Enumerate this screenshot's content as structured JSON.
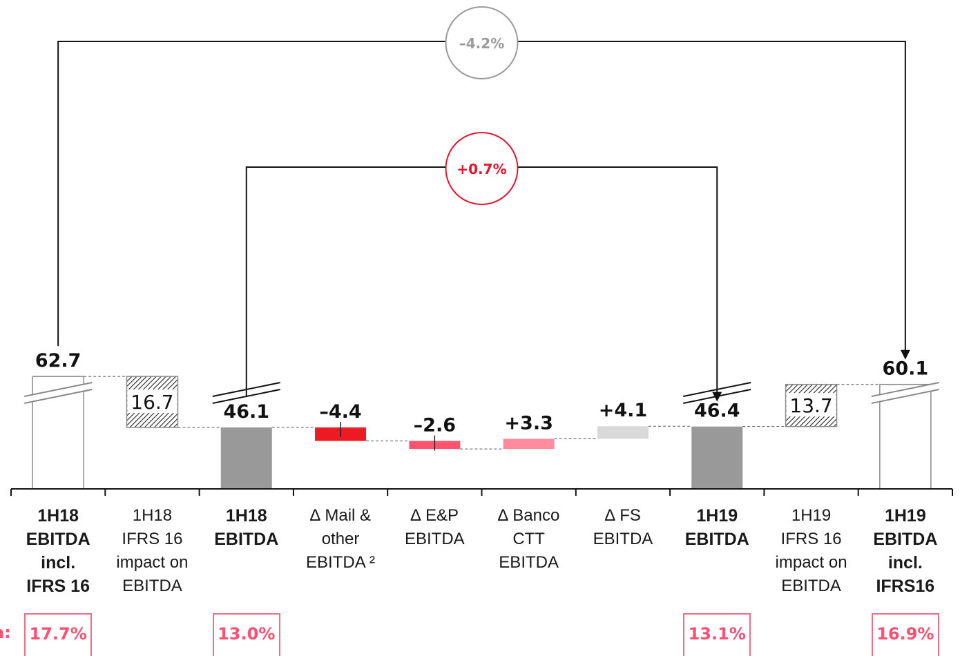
{
  "chart_data": {
    "type": "waterfall",
    "categories": [
      "1H18 EBITDA incl. IFRS 16",
      "1H18 IFRS 16 impact on EBITDA",
      "1H18 EBITDA",
      "∆ Mail & other EBITDA ²",
      "∆ E&P EBITDA",
      "∆ Banco CTT EBITDA",
      "∆ FS EBITDA",
      "1H19 EBITDA",
      "1H19 IFRS 16 impact on EBITDA",
      "1H19 EBITDA incl. IFRS16"
    ],
    "category_lines": [
      [
        "1H18",
        "EBITDA",
        "incl.",
        "IFRS 16"
      ],
      [
        "1H18",
        "IFRS 16",
        "impact on",
        "EBITDA"
      ],
      [
        "1H18",
        "EBITDA"
      ],
      [
        "∆ Mail &",
        "other",
        "EBITDA ²"
      ],
      [
        "∆ E&P",
        "EBITDA"
      ],
      [
        "∆ Banco",
        "CTT",
        "EBITDA"
      ],
      [
        "∆ FS",
        "EBITDA"
      ],
      [
        "1H19",
        "EBITDA"
      ],
      [
        "1H19",
        "IFRS 16",
        "impact on",
        "EBITDA"
      ],
      [
        "1H19",
        "EBITDA",
        "incl.",
        "IFRS16"
      ]
    ],
    "bold_categories": [
      0,
      2,
      7,
      9
    ],
    "values": [
      62.7,
      16.7,
      46.1,
      -4.4,
      -2.6,
      3.3,
      4.1,
      46.4,
      13.7,
      60.1
    ],
    "value_labels": [
      "62.7",
      "16.7",
      "46.1",
      "–4.4",
      "–2.6",
      "+3.3",
      "+4.1",
      "46.4",
      "13.7",
      "60.1"
    ],
    "kinds": [
      "total",
      "ifrs",
      "total",
      "delta",
      "delta",
      "delta",
      "delta",
      "total",
      "ifrs",
      "total"
    ],
    "colors": [
      "#ffffff",
      "hatch",
      "#999999",
      "#ed1c24",
      "#ff5470",
      "#ff8c9e",
      "#d9d9d9",
      "#999999",
      "hatch",
      "#ffffff"
    ],
    "axis_break": true,
    "annotations": [
      {
        "text": "–4.2%",
        "from": 0,
        "to": 9,
        "color": "#9a9a9a"
      },
      {
        "text": "+0.7%",
        "from": 2,
        "to": 7,
        "color": "#e4142c"
      }
    ],
    "ebitda_margin": {
      "label": "a:",
      "values": [
        {
          "category": 0,
          "text": "17.7%"
        },
        {
          "category": 2,
          "text": "13.0%"
        },
        {
          "category": 7,
          "text": "13.1%"
        },
        {
          "category": 9,
          "text": "16.9%"
        }
      ]
    },
    "grid": false,
    "legend": "none"
  }
}
